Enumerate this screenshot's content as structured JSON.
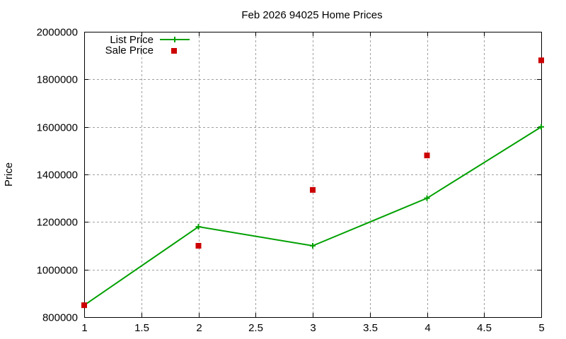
{
  "chart_data": {
    "type": "line",
    "title": "Feb 2026 94025 Home Prices",
    "xlabel": "",
    "ylabel": "Price",
    "x": [
      1,
      2,
      3,
      4,
      5
    ],
    "xlim": [
      1,
      5
    ],
    "ylim": [
      800000,
      2000000
    ],
    "xticks": [
      "1",
      "1.5",
      "2",
      "2.5",
      "3",
      "3.5",
      "4",
      "4.5",
      "5"
    ],
    "yticks": [
      "800000",
      "1000000",
      "1200000",
      "1400000",
      "1600000",
      "1800000",
      "2000000"
    ],
    "grid": true,
    "legend_position": "top-left",
    "series": [
      {
        "name": "List Price",
        "style": "linespoints",
        "marker": "plus",
        "color": "#00a000",
        "values": [
          850000,
          1180000,
          1100000,
          1300000,
          1600000
        ]
      },
      {
        "name": "Sale Price",
        "style": "points",
        "marker": "square",
        "color": "#cc0000",
        "values": [
          850000,
          1100000,
          1335000,
          1480000,
          1880000
        ]
      }
    ]
  },
  "colors": {
    "list_price": "#00a000",
    "sale_price": "#cc0000",
    "grid": "#a0a0a0",
    "axis": "#000000"
  }
}
